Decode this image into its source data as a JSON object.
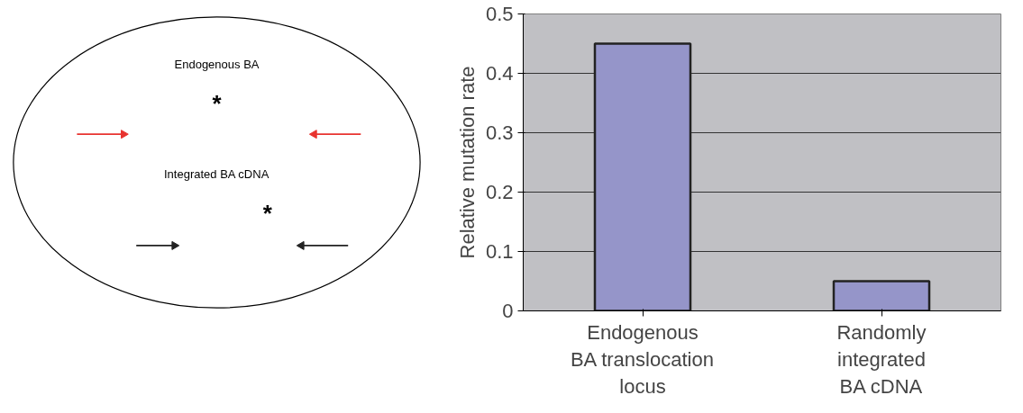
{
  "chart_data": [
    {
      "type": "other",
      "annotations": [
        "Endogenous BA",
        "*",
        "Integrated BA cDNA",
        "*"
      ]
    },
    {
      "type": "bar",
      "categories": [
        "Endogenous\nBA translocation\nlocus",
        "Randomly\nintegrated\nBA cDNA"
      ],
      "values": [
        0.45,
        0.05
      ],
      "color": "#9595c9",
      "ylabel": "Relative mutation rate",
      "ylim": [
        0,
        0.5
      ],
      "yticks": [
        0,
        0.1,
        0.2,
        0.3,
        0.4,
        0.5
      ],
      "grid": "y"
    }
  ]
}
